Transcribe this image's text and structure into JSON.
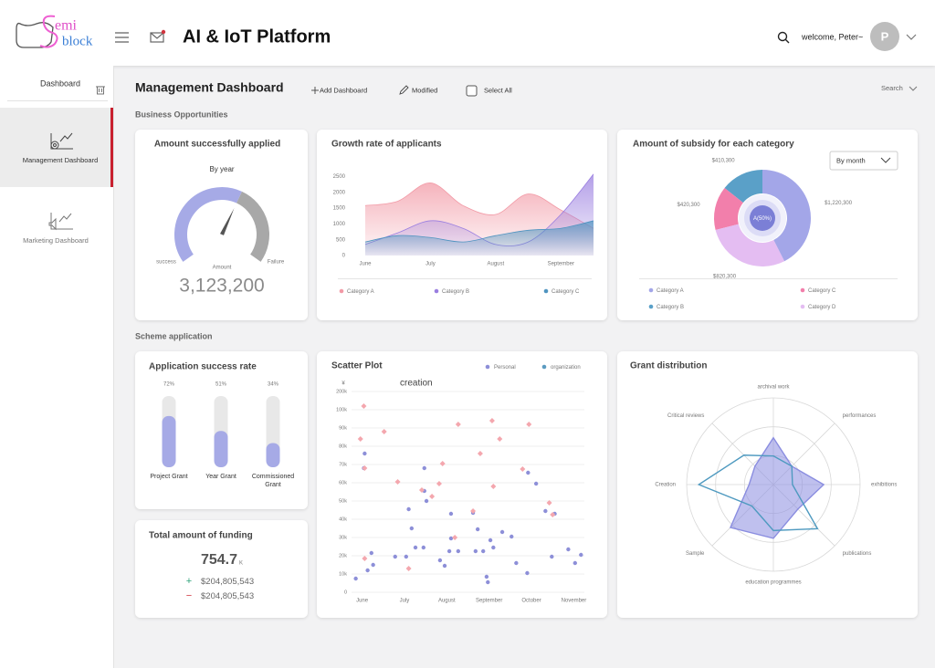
{
  "header": {
    "logo_top": "emi",
    "logo_bottom": "block",
    "title": "AI & IoT Platform",
    "welcome": "welcome, Peter~",
    "avatar": "P"
  },
  "sidebar": {
    "top": "Dashboard",
    "items": [
      "Management Dashboard",
      "Marketing Dashboard"
    ]
  },
  "toolbar": {
    "title": "Management Dashboard",
    "actions": [
      "Add  Dashboard",
      "Modified",
      "Select All"
    ],
    "search": "Search"
  },
  "sections": [
    "Business Opportunities",
    "Scheme application"
  ],
  "gauge": {
    "title": "Amount successfully applied",
    "subtitle": "By year",
    "labels": [
      "success",
      "Amount",
      "Failure"
    ],
    "value": "3,123,200"
  },
  "growth": {
    "type": "area",
    "title": "Growth rate of applicants",
    "categories": [
      "June",
      null,
      "July",
      null,
      "August",
      null,
      "September",
      null
    ],
    "ylim": [
      0,
      2600
    ],
    "yticks": [
      0,
      500,
      1000,
      1500,
      2000,
      2500
    ],
    "series": [
      {
        "name": "Category A",
        "color": "#f29aa6",
        "values": [
          1580,
          1720,
          2300,
          1580,
          1300,
          1950,
          1440,
          860
        ]
      },
      {
        "name": "Category B",
        "color": "#9a7ee0",
        "values": [
          350,
          720,
          1100,
          860,
          350,
          430,
          1300,
          2580
        ]
      },
      {
        "name": "Category C",
        "color": "#4f94c0",
        "values": [
          430,
          630,
          570,
          430,
          630,
          800,
          860,
          1100
        ]
      }
    ]
  },
  "subsidy": {
    "type": "pie",
    "title": "Amount of subsidy for each category",
    "dropdown": "By month",
    "center": "A(50%)",
    "categories": [
      "Category A",
      "Category B",
      "Category C",
      "Category D"
    ],
    "values": [
      1220300,
      410300,
      420300,
      820300
    ],
    "value_labels": [
      "$1,220,300",
      "$410,300",
      "$420,300",
      "$820,300"
    ],
    "colors": [
      "#a3a6e8",
      "#5aa0c8",
      "#f27fab",
      "#e4bdf2"
    ]
  },
  "success_rate": {
    "type": "bar",
    "title": "Application success rate",
    "categories": [
      "Project Grant",
      "Year Grant",
      "Commissioned Grant"
    ],
    "values": [
      72,
      51,
      34
    ],
    "value_labels": [
      "72%",
      "51%",
      "34%"
    ],
    "ylim": [
      0,
      100
    ],
    "color": "#a6aae6"
  },
  "funding": {
    "title": "Total amount of funding",
    "value": "754.7",
    "unit": "K",
    "rows": [
      {
        "sign": "+",
        "amount": "$204,805,543"
      },
      {
        "sign": "−",
        "amount": "$204,805,543"
      }
    ]
  },
  "scatter": {
    "type": "scatter",
    "title": "Scatter Plot",
    "annotation": "creation",
    "ylabel": "¥",
    "xlim": [
      -0.25,
      5.25
    ],
    "xticks": [
      {
        "value": 0,
        "label": "June"
      },
      {
        "value": 1,
        "label": "July"
      },
      {
        "value": 2,
        "label": "August"
      },
      {
        "value": 3,
        "label": "September"
      },
      {
        "value": 4,
        "label": "October"
      },
      {
        "value": 5,
        "label": "November"
      }
    ],
    "ylim": [
      0,
      200000
    ],
    "yticks": [
      0,
      {
        "value": 10000,
        "label": "10k"
      },
      {
        "value": 20000,
        "label": "20k"
      },
      {
        "value": 30000,
        "label": "30k"
      },
      {
        "value": 40000,
        "label": "40k"
      },
      {
        "value": 50000,
        "label": "50k"
      },
      {
        "value": 60000,
        "label": "60k"
      },
      {
        "value": 70000,
        "label": "70k"
      },
      {
        "value": 80000,
        "label": "80k"
      },
      {
        "value": 90000,
        "label": "90k"
      },
      {
        "value": 100000,
        "label": "100k"
      },
      {
        "value": 200000,
        "label": "200k"
      }
    ],
    "series": [
      {
        "name": "Personal",
        "color": "#8d8fd8",
        "legend_color": "#8d8fd8",
        "marker": "circle",
        "x": [
          -0.15,
          0.06,
          0.04,
          0.13,
          0.22,
          0.26,
          0.78,
          1.04,
          1.1,
          1.17,
          1.26,
          1.45,
          1.47,
          1.47,
          1.52,
          1.84,
          1.95,
          2.06,
          2.1,
          2.1,
          2.27,
          2.62,
          2.68,
          2.73,
          2.86,
          2.94,
          2.97,
          3.03,
          3.1,
          3.31,
          3.53,
          3.64,
          3.9,
          3.92,
          4.11,
          4.33,
          4.48,
          4.55,
          4.87,
          5.03,
          5.17
        ],
        "y": [
          7500,
          76000,
          68000,
          12000,
          21500,
          15000,
          19500,
          19500,
          45500,
          35000,
          24500,
          24500,
          68000,
          55500,
          50000,
          17500,
          14500,
          22500,
          29500,
          43000,
          22500,
          43500,
          22500,
          34500,
          22500,
          8500,
          5500,
          28500,
          24500,
          33000,
          30500,
          16000,
          10500,
          65500,
          59500,
          44500,
          19500,
          43000,
          23500,
          16000,
          20500
        ]
      },
      {
        "name": "organization",
        "color": "#f4a7ae",
        "legend_color": "#5b9bc0",
        "marker": "diamond",
        "x": [
          0.04,
          -0.04,
          0.06,
          0.06,
          0.52,
          0.84,
          1.1,
          1.41,
          1.65,
          1.82,
          1.9,
          2.19,
          2.27,
          2.62,
          2.79,
          3.07,
          3.1,
          3.25,
          3.79,
          3.94,
          4.42,
          4.5
        ],
        "y": [
          120000,
          84000,
          68000,
          18500,
          88000,
          60500,
          13000,
          56000,
          52500,
          59500,
          70500,
          30000,
          92000,
          44500,
          76000,
          94000,
          58000,
          84000,
          67500,
          92000,
          49000,
          42500
        ]
      }
    ]
  },
  "radar": {
    "type": "radar",
    "title": "Grant distribution",
    "axes": [
      "archival work",
      "performances",
      "exhibitions",
      "publications",
      "education programmes",
      "Sample",
      "Creation",
      "Critical reviews"
    ],
    "rlim": [
      0,
      100
    ],
    "series": [
      {
        "color": "#8a8de0",
        "fill": true,
        "values": [
          54,
          30,
          58,
          40,
          62,
          70,
          28,
          30
        ]
      },
      {
        "color": "#4f9ac0",
        "fill": false,
        "values": [
          33,
          30,
          22,
          72,
          53,
          35,
          86,
          48
        ]
      }
    ]
  }
}
